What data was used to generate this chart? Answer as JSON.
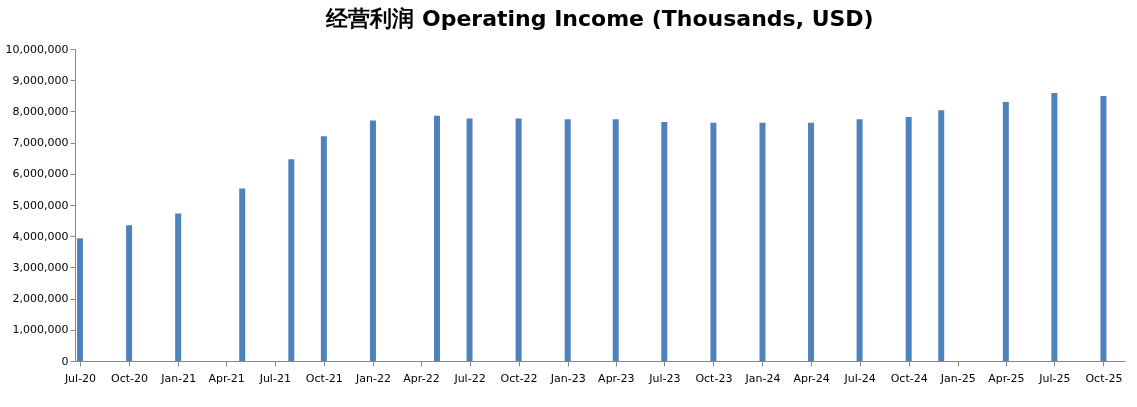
{
  "chart_data": {
    "type": "bar",
    "title": "经营利润 Operating Income (Thousands, USD)",
    "x": [
      "2020-07",
      "2020-10",
      "2021-01",
      "2021-05",
      "2021-08",
      "2021-10",
      "2022-01",
      "2022-05",
      "2022-07",
      "2022-10",
      "2023-01",
      "2023-04",
      "2023-07",
      "2023-10",
      "2024-01",
      "2024-04",
      "2024-07",
      "2024-10",
      "2024-12",
      "2025-04",
      "2025-07",
      "2025-10"
    ],
    "series": [
      {
        "color": "#4f81bd",
        "values": [
          3930000,
          4350000,
          4730000,
          5530000,
          6470000,
          7200000,
          7710000,
          7860000,
          7770000,
          7770000,
          7750000,
          7750000,
          7660000,
          7640000,
          7640000,
          7640000,
          7750000,
          7820000,
          8040000,
          8300000,
          8590000,
          8490000
        ]
      }
    ],
    "xlim": [
      "2020-07",
      "2025-11"
    ],
    "xticks": [
      {
        "value": "2020-07",
        "label": "Jul-20"
      },
      {
        "value": "2020-10",
        "label": "Oct-20"
      },
      {
        "value": "2021-01",
        "label": "Jan-21"
      },
      {
        "value": "2021-04",
        "label": "Apr-21"
      },
      {
        "value": "2021-07",
        "label": "Jul-21"
      },
      {
        "value": "2021-10",
        "label": "Oct-21"
      },
      {
        "value": "2022-01",
        "label": "Jan-22"
      },
      {
        "value": "2022-04",
        "label": "Apr-22"
      },
      {
        "value": "2022-07",
        "label": "Jul-22"
      },
      {
        "value": "2022-10",
        "label": "Oct-22"
      },
      {
        "value": "2023-01",
        "label": "Jan-23"
      },
      {
        "value": "2023-04",
        "label": "Apr-23"
      },
      {
        "value": "2023-07",
        "label": "Jul-23"
      },
      {
        "value": "2023-10",
        "label": "Oct-23"
      },
      {
        "value": "2024-01",
        "label": "Jan-24"
      },
      {
        "value": "2024-04",
        "label": "Apr-24"
      },
      {
        "value": "2024-07",
        "label": "Jul-24"
      },
      {
        "value": "2024-10",
        "label": "Oct-24"
      },
      {
        "value": "2025-01",
        "label": "Jan-25"
      },
      {
        "value": "2025-04",
        "label": "Apr-25"
      },
      {
        "value": "2025-07",
        "label": "Jul-25"
      },
      {
        "value": "2025-10",
        "label": "Oct-25"
      }
    ],
    "ylim": [
      0,
      10000000
    ],
    "yticks": [
      0,
      {
        "value": 1000000,
        "label": "1,000,000"
      },
      {
        "value": 2000000,
        "label": "2,000,000"
      },
      {
        "value": 3000000,
        "label": "3,000,000"
      },
      {
        "value": 4000000,
        "label": "4,000,000"
      },
      {
        "value": 5000000,
        "label": "5,000,000"
      },
      {
        "value": 6000000,
        "label": "6,000,000"
      },
      {
        "value": 7000000,
        "label": "7,000,000"
      },
      {
        "value": 8000000,
        "label": "8,000,000"
      },
      {
        "value": 9000000,
        "label": "9,000,000"
      },
      {
        "value": 10000000,
        "label": "10,000,000"
      }
    ],
    "grid": false,
    "legend": false
  }
}
